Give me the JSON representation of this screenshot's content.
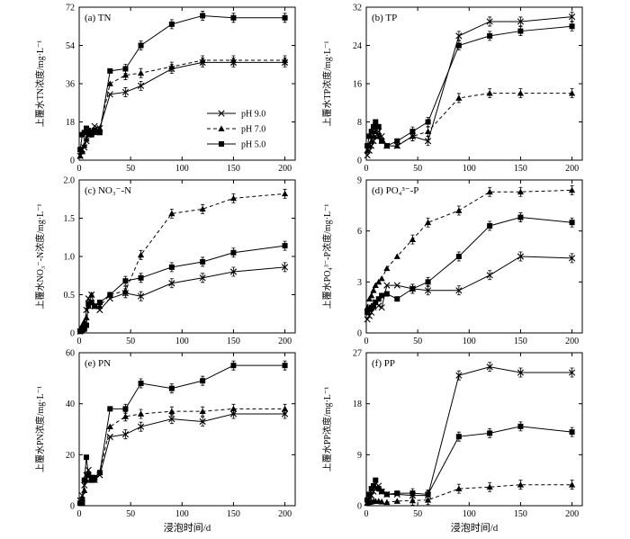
{
  "figure": {
    "xlabel": "浸泡时间/d",
    "legend": [
      {
        "name": "pH 9.0",
        "marker": "x",
        "dash": "solid"
      },
      {
        "name": "pH 7.0",
        "marker": "triangle",
        "dash": "dashed"
      },
      {
        "name": "pH 5.0",
        "marker": "square",
        "dash": "solid"
      }
    ]
  },
  "chart_data": [
    {
      "type": "line",
      "title": "(a) TN",
      "ylabel": "上覆水TN浓度/mg·L⁻¹",
      "xlim": [
        0,
        210
      ],
      "ylim": [
        0,
        72
      ],
      "yticks": [
        0,
        18,
        36,
        54,
        72
      ],
      "xticks": [
        0,
        50,
        100,
        150,
        200
      ],
      "legend_placement": "center-right",
      "series": [
        {
          "name": "pH 9.0",
          "x": [
            1,
            3,
            5,
            7,
            9,
            12,
            15,
            20,
            30,
            45,
            60,
            90,
            120,
            150,
            200
          ],
          "y": [
            2,
            5,
            6,
            9,
            12,
            14,
            16,
            15,
            31,
            32,
            35,
            43,
            46,
            46,
            46
          ]
        },
        {
          "name": "pH 7.0",
          "x": [
            1,
            3,
            5,
            7,
            9,
            12,
            15,
            20,
            30,
            45,
            60,
            90,
            120,
            150,
            200
          ],
          "y": [
            2,
            4,
            7,
            10,
            12,
            13,
            13,
            15,
            36,
            40,
            41,
            44,
            47,
            47,
            47
          ]
        },
        {
          "name": "pH 5.0",
          "x": [
            1,
            3,
            5,
            7,
            9,
            12,
            15,
            20,
            30,
            45,
            60,
            90,
            120,
            150,
            200
          ],
          "y": [
            5,
            12,
            13,
            15,
            14,
            12,
            14,
            13,
            42,
            43,
            54,
            64,
            68,
            67,
            67
          ]
        }
      ]
    },
    {
      "type": "line",
      "title": "(b) TP",
      "ylabel": "上覆水TP浓度/mg·L⁻¹",
      "xlim": [
        0,
        210
      ],
      "ylim": [
        0,
        32
      ],
      "yticks": [
        0,
        8,
        16,
        24,
        32
      ],
      "xticks": [
        0,
        50,
        100,
        150,
        200
      ],
      "series": [
        {
          "name": "pH 9.0",
          "x": [
            1,
            3,
            5,
            7,
            9,
            12,
            15,
            20,
            30,
            45,
            60,
            90,
            120,
            150,
            200
          ],
          "y": [
            1,
            2,
            3,
            4,
            5,
            6,
            5,
            3,
            3,
            5,
            4,
            26,
            29,
            29,
            30
          ]
        },
        {
          "name": "pH 7.0",
          "x": [
            1,
            3,
            5,
            7,
            9,
            12,
            15,
            20,
            30,
            45,
            60,
            90,
            120,
            150,
            200
          ],
          "y": [
            2,
            3,
            4,
            5,
            6,
            5,
            4,
            3,
            3,
            5,
            6,
            13,
            14,
            14,
            14
          ]
        },
        {
          "name": "pH 5.0",
          "x": [
            1,
            3,
            5,
            7,
            9,
            12,
            15,
            20,
            30,
            45,
            60,
            90,
            120,
            150,
            200
          ],
          "y": [
            3,
            5,
            6,
            7,
            8,
            7,
            4,
            3,
            4,
            6,
            8,
            24,
            26,
            27,
            28
          ]
        }
      ]
    },
    {
      "type": "line",
      "title": "(c) NO₃⁻-N",
      "ylabel": "上覆水NO₃⁻-N浓度/mg·L⁻¹",
      "xlim": [
        0,
        210
      ],
      "ylim": [
        0,
        2.0
      ],
      "yticks": [
        0,
        0.5,
        1.0,
        1.5,
        2.0
      ],
      "ytick_labels": [
        "0",
        "0.5",
        "1.0",
        "1.5",
        "2.0"
      ],
      "xticks": [
        0,
        50,
        100,
        150,
        200
      ],
      "series": [
        {
          "name": "pH 9.0",
          "x": [
            1,
            3,
            5,
            7,
            9,
            12,
            15,
            20,
            30,
            45,
            60,
            90,
            120,
            150,
            200
          ],
          "y": [
            0.02,
            0.05,
            0.08,
            0.3,
            0.45,
            0.5,
            0.35,
            0.3,
            0.45,
            0.52,
            0.48,
            0.65,
            0.72,
            0.8,
            0.86
          ]
        },
        {
          "name": "pH 7.0",
          "x": [
            1,
            3,
            5,
            7,
            9,
            12,
            15,
            20,
            30,
            45,
            60,
            90,
            120,
            150,
            200
          ],
          "y": [
            0.05,
            0.1,
            0.15,
            0.2,
            0.35,
            0.5,
            0.35,
            0.35,
            0.5,
            0.55,
            1.02,
            1.56,
            1.62,
            1.76,
            1.82
          ]
        },
        {
          "name": "pH 5.0",
          "x": [
            1,
            3,
            5,
            7,
            9,
            12,
            15,
            20,
            30,
            45,
            60,
            90,
            120,
            150,
            200
          ],
          "y": [
            0.02,
            0.03,
            0.05,
            0.1,
            0.38,
            0.4,
            0.35,
            0.4,
            0.5,
            0.68,
            0.72,
            0.86,
            0.93,
            1.05,
            1.14
          ]
        }
      ]
    },
    {
      "type": "line",
      "title": "(d) PO₄³⁻-P",
      "ylabel": "上覆水PO₄³⁻-P浓度/mg·L⁻¹",
      "xlim": [
        0,
        210
      ],
      "ylim": [
        0,
        9
      ],
      "yticks": [
        0,
        3,
        6,
        9
      ],
      "xticks": [
        0,
        50,
        100,
        150,
        200
      ],
      "series": [
        {
          "name": "pH 9.0",
          "x": [
            1,
            3,
            5,
            7,
            9,
            12,
            15,
            20,
            30,
            45,
            60,
            90,
            120,
            150,
            200
          ],
          "y": [
            0.8,
            1.0,
            1.2,
            1.5,
            1.8,
            1.6,
            1.5,
            2.8,
            2.8,
            2.6,
            2.5,
            2.5,
            3.4,
            4.5,
            4.4
          ]
        },
        {
          "name": "pH 7.0",
          "x": [
            1,
            3,
            5,
            7,
            9,
            12,
            15,
            20,
            30,
            45,
            60,
            90,
            120,
            150,
            200
          ],
          "y": [
            1.5,
            2.0,
            2.2,
            2.5,
            2.8,
            3.0,
            3.2,
            3.8,
            4.5,
            5.5,
            6.5,
            7.2,
            8.3,
            8.3,
            8.4
          ]
        },
        {
          "name": "pH 5.0",
          "x": [
            1,
            3,
            5,
            7,
            9,
            12,
            15,
            20,
            30,
            45,
            60,
            90,
            120,
            150,
            200
          ],
          "y": [
            1.2,
            1.4,
            1.5,
            1.6,
            1.8,
            2.0,
            2.2,
            2.3,
            2.0,
            2.6,
            3.0,
            4.5,
            6.3,
            6.8,
            6.5
          ]
        }
      ]
    },
    {
      "type": "line",
      "title": "(e) PN",
      "ylabel": "上覆水PN浓度/mg·L⁻¹",
      "xlim": [
        0,
        210
      ],
      "ylim": [
        0,
        60
      ],
      "yticks": [
        0,
        20,
        40,
        60
      ],
      "xticks": [
        0,
        50,
        100,
        150,
        200
      ],
      "series": [
        {
          "name": "pH 9.0",
          "x": [
            1,
            3,
            5,
            7,
            9,
            12,
            15,
            20,
            30,
            45,
            60,
            90,
            120,
            150,
            200
          ],
          "y": [
            2,
            4,
            8,
            12,
            14,
            11,
            11,
            12,
            27,
            28,
            31,
            34,
            33,
            36,
            36
          ]
        },
        {
          "name": "pH 7.0",
          "x": [
            1,
            3,
            5,
            7,
            9,
            12,
            15,
            20,
            30,
            45,
            60,
            90,
            120,
            150,
            200
          ],
          "y": [
            1,
            3,
            6,
            10,
            12,
            11,
            10,
            13,
            31,
            35,
            36,
            37,
            37,
            38,
            38
          ]
        },
        {
          "name": "pH 5.0",
          "x": [
            1,
            3,
            5,
            7,
            9,
            12,
            15,
            20,
            30,
            45,
            60,
            90,
            120,
            150,
            200
          ],
          "y": [
            1,
            1,
            10,
            19,
            12,
            10,
            11,
            13,
            38,
            38,
            48,
            46,
            49,
            55,
            55
          ]
        }
      ]
    },
    {
      "type": "line",
      "title": "(f) PP",
      "ylabel": "上覆水PP浓度/mg·L⁻¹",
      "xlim": [
        0,
        210
      ],
      "ylim": [
        0,
        27
      ],
      "yticks": [
        0,
        9,
        18,
        27
      ],
      "xticks": [
        0,
        50,
        100,
        150,
        200
      ],
      "series": [
        {
          "name": "pH 9.0",
          "x": [
            1,
            3,
            5,
            7,
            9,
            12,
            15,
            20,
            30,
            45,
            60,
            90,
            120,
            150,
            200
          ],
          "y": [
            0.5,
            1.0,
            1.8,
            2.5,
            3.0,
            3.5,
            2.5,
            2.0,
            2.0,
            1.8,
            1.8,
            23,
            24.5,
            23.5,
            23.5
          ]
        },
        {
          "name": "pH 7.0",
          "x": [
            1,
            3,
            5,
            7,
            9,
            12,
            15,
            20,
            30,
            45,
            60,
            90,
            120,
            150,
            200
          ],
          "y": [
            0.5,
            0.6,
            0.7,
            0.8,
            0.8,
            0.8,
            0.7,
            0.6,
            0.8,
            0.9,
            1.0,
            3.0,
            3.3,
            3.7,
            3.7
          ]
        },
        {
          "name": "pH 5.0",
          "x": [
            1,
            3,
            5,
            7,
            9,
            12,
            15,
            20,
            30,
            45,
            60,
            90,
            120,
            150,
            200
          ],
          "y": [
            1.0,
            2.0,
            3.0,
            3.5,
            4.5,
            3.0,
            2.5,
            2.0,
            2.2,
            2.2,
            2.0,
            12.2,
            12.8,
            14.0,
            13.0
          ]
        }
      ]
    }
  ]
}
